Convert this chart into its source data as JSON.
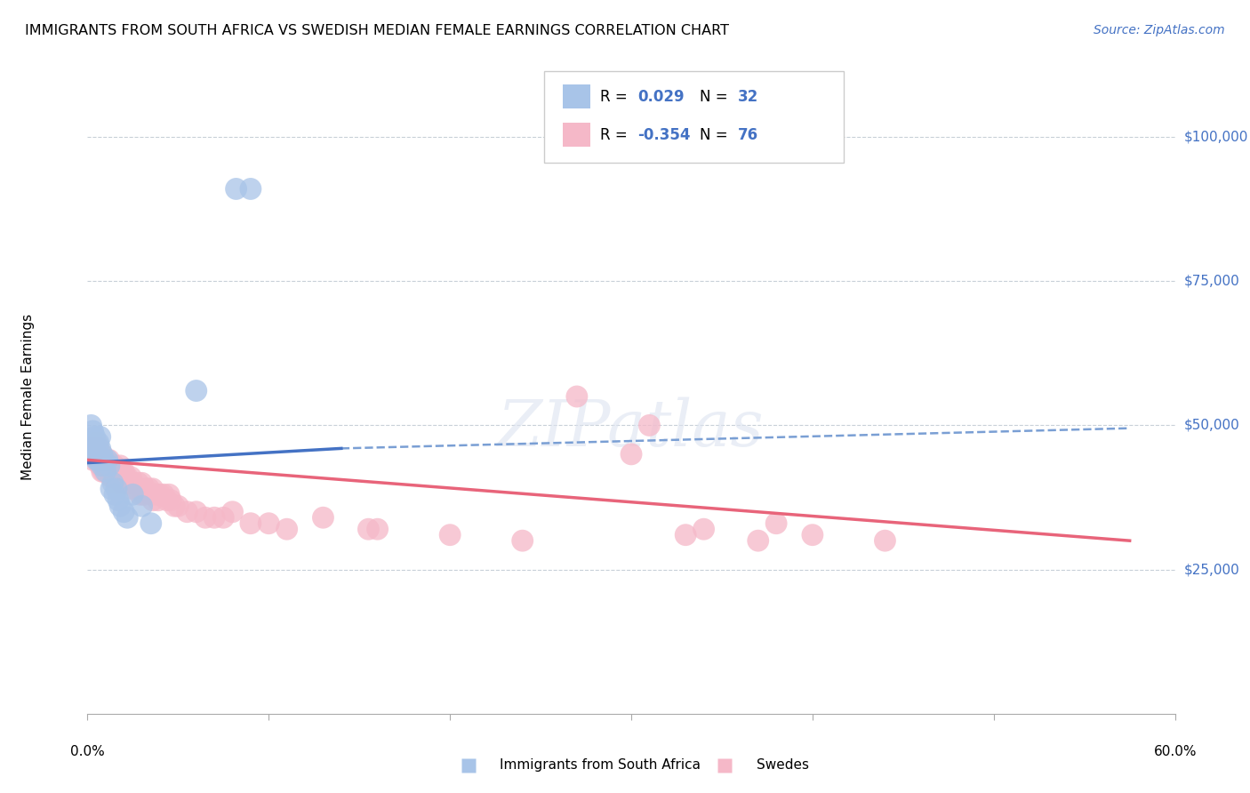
{
  "title": "IMMIGRANTS FROM SOUTH AFRICA VS SWEDISH MEDIAN FEMALE EARNINGS CORRELATION CHART",
  "source": "Source: ZipAtlas.com",
  "ylabel": "Median Female Earnings",
  "y_ticks": [
    0,
    25000,
    50000,
    75000,
    100000
  ],
  "y_tick_labels": [
    "",
    "$25,000",
    "$50,000",
    "$75,000",
    "$100,000"
  ],
  "xlim": [
    0.0,
    0.6
  ],
  "ylim": [
    0,
    110000
  ],
  "watermark": "ZIPatlas",
  "blue_color": "#a8c4e8",
  "pink_color": "#f5b8c8",
  "blue_line_color": "#4472c4",
  "pink_line_color": "#e8647a",
  "dash_color": "#7a9fd4",
  "blue_label": "Immigrants from South Africa",
  "pink_label": "Swedes",
  "blue_scatter": [
    [
      0.001,
      47000
    ],
    [
      0.002,
      50000
    ],
    [
      0.003,
      49000
    ],
    [
      0.003,
      46000
    ],
    [
      0.004,
      48000
    ],
    [
      0.004,
      46000
    ],
    [
      0.005,
      45000
    ],
    [
      0.005,
      44000
    ],
    [
      0.006,
      47000
    ],
    [
      0.006,
      44000
    ],
    [
      0.007,
      48000
    ],
    [
      0.007,
      46000
    ],
    [
      0.008,
      45000
    ],
    [
      0.008,
      43000
    ],
    [
      0.009,
      44000
    ],
    [
      0.01,
      42000
    ],
    [
      0.011,
      44000
    ],
    [
      0.012,
      43000
    ],
    [
      0.013,
      39000
    ],
    [
      0.014,
      40000
    ],
    [
      0.015,
      38000
    ],
    [
      0.016,
      39000
    ],
    [
      0.017,
      37000
    ],
    [
      0.018,
      36000
    ],
    [
      0.02,
      35000
    ],
    [
      0.022,
      34000
    ],
    [
      0.025,
      38000
    ],
    [
      0.03,
      36000
    ],
    [
      0.035,
      33000
    ],
    [
      0.06,
      56000
    ],
    [
      0.082,
      91000
    ],
    [
      0.09,
      91000
    ]
  ],
  "pink_scatter": [
    [
      0.002,
      46000
    ],
    [
      0.003,
      44000
    ],
    [
      0.005,
      47000
    ],
    [
      0.006,
      46000
    ],
    [
      0.007,
      44000
    ],
    [
      0.007,
      43000
    ],
    [
      0.008,
      45000
    ],
    [
      0.008,
      42000
    ],
    [
      0.009,
      44000
    ],
    [
      0.009,
      42000
    ],
    [
      0.01,
      44000
    ],
    [
      0.01,
      43000
    ],
    [
      0.011,
      43000
    ],
    [
      0.012,
      44000
    ],
    [
      0.012,
      42000
    ],
    [
      0.013,
      43000
    ],
    [
      0.013,
      41000
    ],
    [
      0.014,
      42000
    ],
    [
      0.014,
      41000
    ],
    [
      0.015,
      43000
    ],
    [
      0.015,
      41000
    ],
    [
      0.016,
      42000
    ],
    [
      0.016,
      40000
    ],
    [
      0.017,
      41000
    ],
    [
      0.018,
      43000
    ],
    [
      0.018,
      41000
    ],
    [
      0.019,
      42000
    ],
    [
      0.019,
      40000
    ],
    [
      0.02,
      42000
    ],
    [
      0.02,
      40000
    ],
    [
      0.021,
      41000
    ],
    [
      0.022,
      41000
    ],
    [
      0.022,
      40000
    ],
    [
      0.023,
      40000
    ],
    [
      0.024,
      41000
    ],
    [
      0.025,
      40000
    ],
    [
      0.025,
      39000
    ],
    [
      0.027,
      39000
    ],
    [
      0.028,
      40000
    ],
    [
      0.029,
      38000
    ],
    [
      0.03,
      40000
    ],
    [
      0.031,
      38000
    ],
    [
      0.032,
      39000
    ],
    [
      0.034,
      39000
    ],
    [
      0.035,
      38000
    ],
    [
      0.036,
      39000
    ],
    [
      0.036,
      37000
    ],
    [
      0.038,
      38000
    ],
    [
      0.039,
      37000
    ],
    [
      0.04,
      38000
    ],
    [
      0.042,
      38000
    ],
    [
      0.044,
      37000
    ],
    [
      0.045,
      38000
    ],
    [
      0.046,
      37000
    ],
    [
      0.048,
      36000
    ],
    [
      0.05,
      36000
    ],
    [
      0.055,
      35000
    ],
    [
      0.06,
      35000
    ],
    [
      0.065,
      34000
    ],
    [
      0.07,
      34000
    ],
    [
      0.075,
      34000
    ],
    [
      0.08,
      35000
    ],
    [
      0.09,
      33000
    ],
    [
      0.1,
      33000
    ],
    [
      0.11,
      32000
    ],
    [
      0.13,
      34000
    ],
    [
      0.155,
      32000
    ],
    [
      0.16,
      32000
    ],
    [
      0.2,
      31000
    ],
    [
      0.24,
      30000
    ],
    [
      0.27,
      55000
    ],
    [
      0.3,
      45000
    ],
    [
      0.31,
      50000
    ],
    [
      0.33,
      31000
    ],
    [
      0.34,
      32000
    ],
    [
      0.37,
      30000
    ],
    [
      0.38,
      33000
    ],
    [
      0.4,
      31000
    ],
    [
      0.44,
      30000
    ]
  ]
}
